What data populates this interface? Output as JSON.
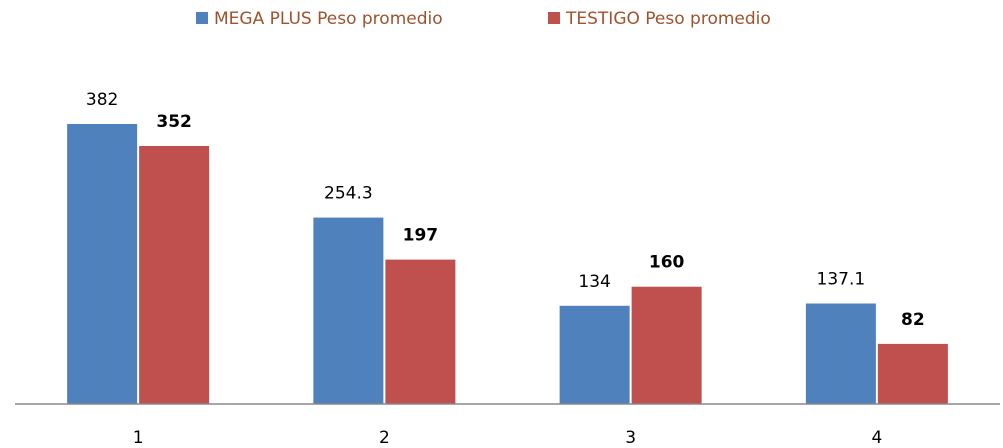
{
  "chart_data": {
    "type": "bar",
    "categories": [
      "1",
      "2",
      "3",
      "4"
    ],
    "series": [
      {
        "name": "MEGA PLUS Peso promedio",
        "color": "#4f81bd",
        "values": [
          382,
          254.3,
          134,
          137.1
        ],
        "label_weight": "normal"
      },
      {
        "name": "TESTIGO Peso promedio",
        "color": "#c0504d",
        "values": [
          352,
          197,
          160,
          82
        ],
        "label_weight": "bold"
      }
    ],
    "ylim": [
      0,
      500
    ],
    "legend": "top"
  }
}
